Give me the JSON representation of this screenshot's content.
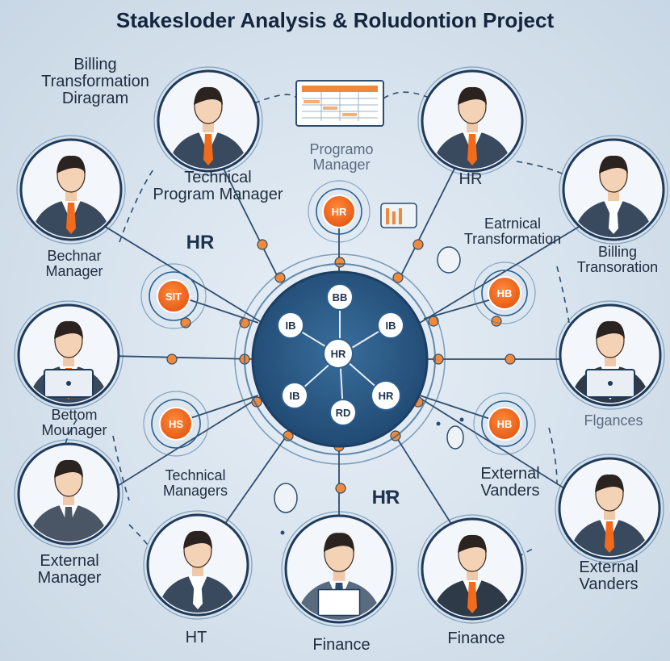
{
  "title": "Stakesloder Analysis & Roludontion Project",
  "colors": {
    "background": "#d7e3ee",
    "hub": "#2b5a86",
    "accent": "#f26a1b",
    "ring": "#2c5f8e",
    "line": "#2e4d6e"
  },
  "labels": {
    "billing_transformation_diagram": "Billing\nTransformation\nDiragram",
    "technical_program_manager": "Technical\nProgram Manager",
    "programo_manager": "Programo\nManager",
    "hr_top": "HR",
    "hr_left": "HR",
    "bechnar_manager": "Bechnar\nManager",
    "eatrnical_transformation": "Eatrnical\nTransformation",
    "billing_transoration": "Billing\nTransoration",
    "bettom_mounager": "Bettom\nMounager",
    "flgances": "Flgances",
    "technical_managers": "Technical\nManagers",
    "hr_bottom": "HR",
    "external_vanders_mid": "External\nVanders",
    "external_manager": "External\nManager",
    "external_vanders_right": "External\nVanders",
    "ht": "HT",
    "finance_bottom": "Finance",
    "finance_right": "Finance"
  },
  "hub_nodes": [
    "BB",
    "IB",
    "IB",
    "HR",
    "IB",
    "HR",
    "RD"
  ],
  "satellite_nodes": [
    "HR",
    "SIT",
    "HB",
    "HS",
    "HB"
  ],
  "icons": [
    "spreadsheet-icon",
    "bar-chart-icon",
    "stakeholder-avatar-icon"
  ]
}
